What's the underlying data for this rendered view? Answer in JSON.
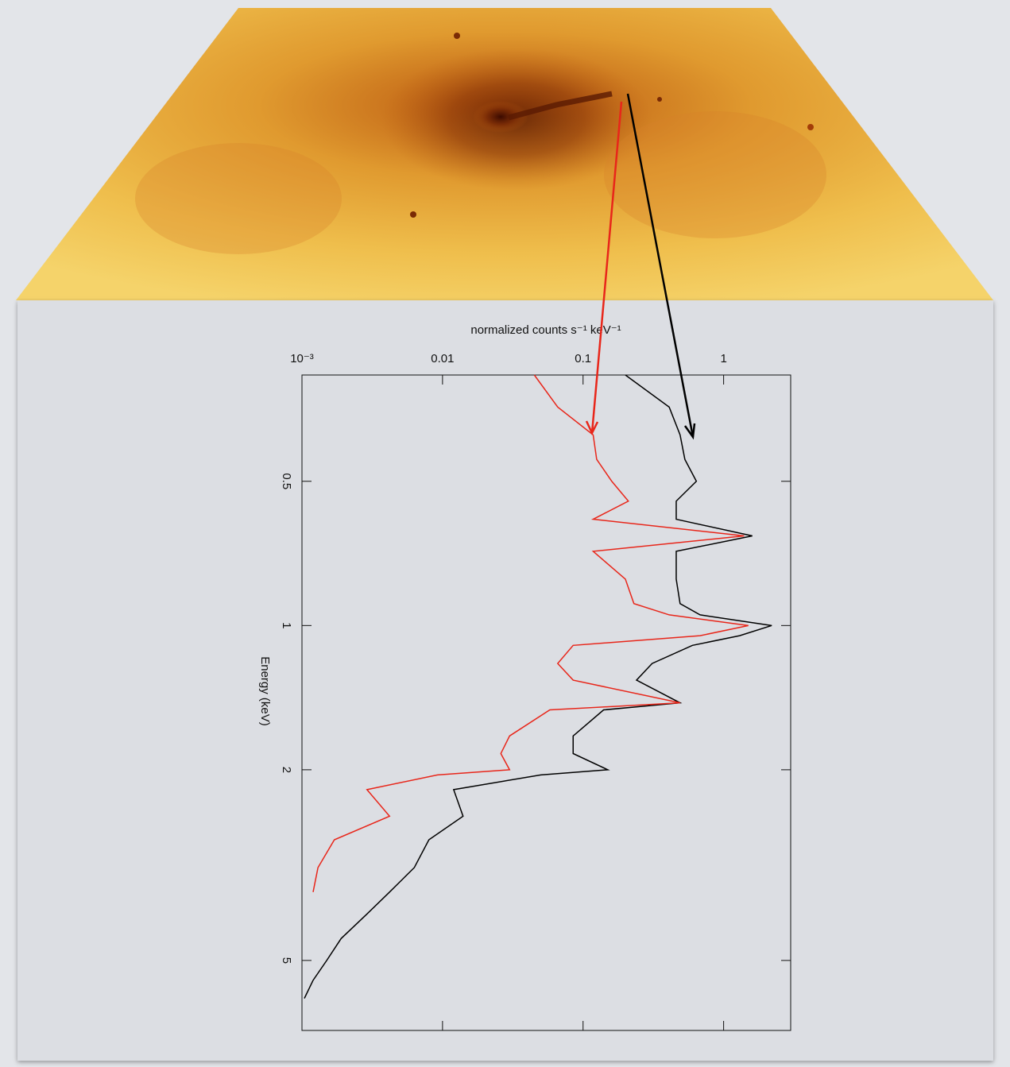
{
  "chart_data": {
    "type": "line",
    "xlabel": "Energy (keV)",
    "ylabel": "normalized counts s⁻¹ keV⁻¹",
    "x": [
      0.3,
      0.35,
      0.4,
      0.45,
      0.5,
      0.55,
      0.6,
      0.65,
      0.7,
      0.8,
      0.9,
      0.95,
      1.0,
      1.05,
      1.1,
      1.2,
      1.3,
      1.45,
      1.5,
      1.7,
      1.85,
      2.0,
      2.05,
      2.2,
      2.5,
      2.8,
      3.2,
      3.6,
      4.0,
      4.5,
      5.0,
      5.5,
      6.0
    ],
    "series": [
      {
        "color": "#000000",
        "values": [
          0.2,
          0.41,
          0.49,
          0.53,
          0.64,
          0.46,
          0.46,
          1.6,
          0.46,
          0.46,
          0.49,
          0.68,
          2.2,
          1.3,
          0.6,
          0.31,
          0.24,
          0.49,
          0.14,
          0.085,
          0.085,
          0.15,
          0.05,
          0.012,
          0.014,
          0.008,
          0.0063,
          0.0042,
          0.0029,
          0.0019,
          0.0015,
          0.0012,
          0.00104
        ]
      },
      {
        "color": "#e8261a",
        "values": [
          0.045,
          0.066,
          0.118,
          0.125,
          0.16,
          0.21,
          0.118,
          1.4,
          0.118,
          0.2,
          0.23,
          0.41,
          1.5,
          0.68,
          0.085,
          0.066,
          0.085,
          0.49,
          0.058,
          0.03,
          0.026,
          0.03,
          0.0092,
          0.0029,
          0.0042,
          0.0017,
          0.0013,
          0.0012,
          null,
          null,
          null,
          null,
          null
        ]
      }
    ],
    "xlim": [
      0.3,
      7
    ],
    "xticks": [
      0.5,
      1,
      2,
      5
    ],
    "ylim": [
      0.001,
      3
    ],
    "yticks": [
      {
        "value": 0.001,
        "label": "10⁻³"
      },
      0.01,
      0.1,
      1
    ],
    "log_x": true,
    "log_y": true
  }
}
